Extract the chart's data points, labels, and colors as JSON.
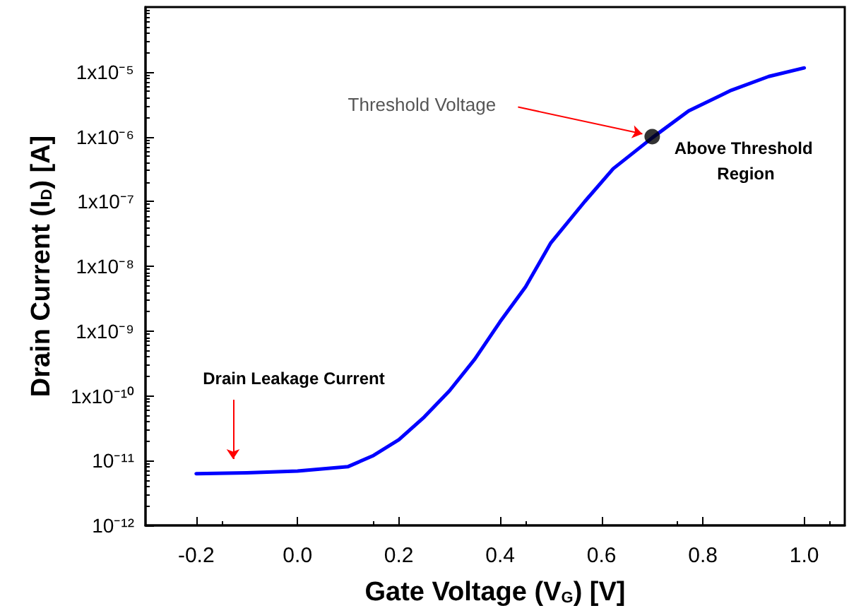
{
  "chart_data": {
    "type": "line",
    "xlabel": "Gate Voltage (V$_{G}$) [V]",
    "ylabel": "Drain Current (I$_{D}$) [A]",
    "log": "y",
    "grid": false,
    "line_style": "solid",
    "xlim": [
      -0.3,
      1.08
    ],
    "xticks": [
      {
        "value": -0.2,
        "label": "-0.2"
      },
      {
        "value": 0,
        "label": "0.0"
      },
      {
        "value": 0.2,
        "label": "0.2"
      },
      {
        "value": 0.4,
        "label": "0.4"
      },
      {
        "value": 0.6,
        "label": "0.6"
      },
      {
        "value": 0.8,
        "label": "0.8"
      },
      {
        "value": 1,
        "label": "1.0"
      }
    ],
    "ylim": [
      1e-12,
      0.0001
    ],
    "yticks": [
      {
        "value": 1e-12,
        "label": "10⁻¹²"
      },
      {
        "value": 1e-11,
        "label": "10⁻¹¹"
      },
      {
        "value": 1e-10,
        "label": "1x10⁻¹⁰"
      },
      {
        "value": 1e-09,
        "label": "1x10⁻⁹"
      },
      {
        "value": 1e-08,
        "label": "1x10⁻⁸"
      },
      {
        "value": 1e-07,
        "label": "1x10⁻⁷"
      },
      {
        "value": 1e-06,
        "label": "1x10⁻⁶"
      },
      {
        "value": 1e-05,
        "label": "1x10⁻⁵"
      }
    ],
    "series": [
      {
        "color": "#0000ff",
        "x": [
          -0.2,
          -0.1,
          0,
          0.1,
          0.15,
          0.2,
          0.25,
          0.3,
          0.35,
          0.4,
          0.45,
          0.5,
          0.567,
          0.623,
          0.7,
          0.772,
          0.856,
          0.93,
          1.0
        ],
        "values": [
          6.3e-12,
          6.5e-12,
          6.9e-12,
          8.1e-12,
          1.2e-11,
          2.1e-11,
          4.7e-11,
          1.2e-10,
          3.7e-10,
          1.4e-09,
          4.8e-09,
          2.3e-08,
          1e-07,
          3.2e-07,
          9.6e-07,
          2.5e-06,
          5.2e-06,
          8.5e-06,
          1.15e-05
        ]
      },
      {
        "type": "scatter",
        "color": "#000000",
        "marker": "circle",
        "x": [
          0.7
        ],
        "values": [
          1e-06
        ]
      }
    ],
    "annotations": [
      {
        "text": "Threshold Voltage",
        "x": 0.7,
        "y": 1e-06
      },
      "Above Threshold Region",
      "Drain Leakage Current"
    ]
  }
}
